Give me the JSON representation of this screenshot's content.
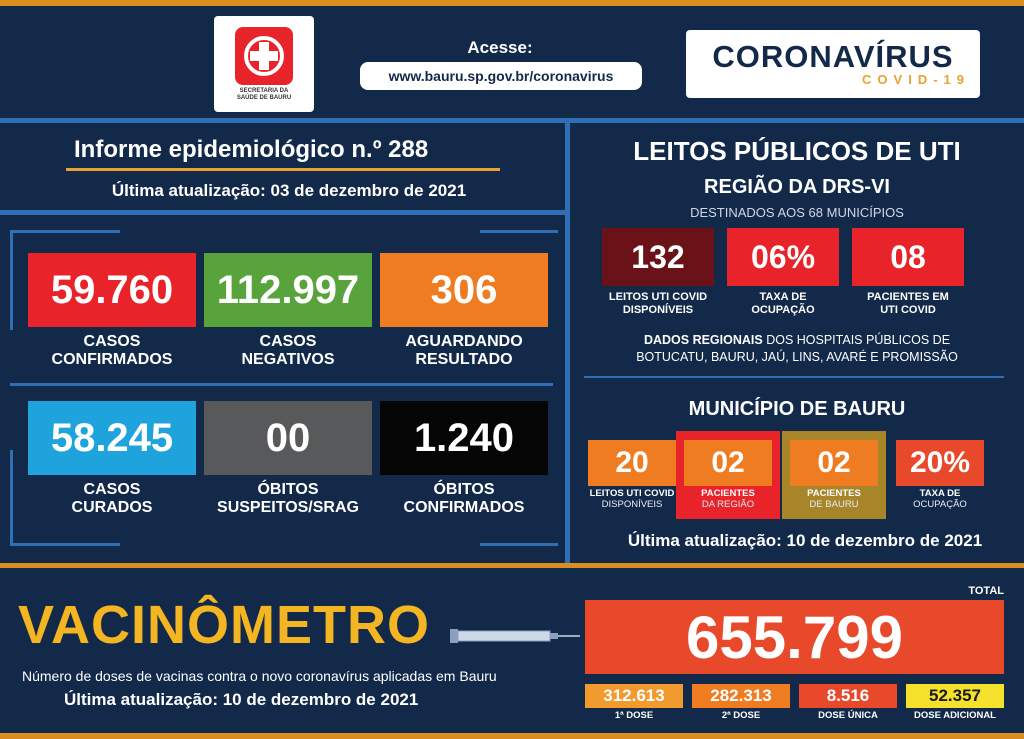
{
  "header": {
    "seal_line1": "SECRETARIA DA",
    "seal_line2": "SAÚDE DE BAURU",
    "access_label": "Acesse:",
    "access_url": "www.bauru.sp.gov.br/coronavirus",
    "brand_title": "CORONAVÍRUS",
    "brand_sub": "COVID-19"
  },
  "informe": {
    "title": "Informe epidemiológico n.º 288",
    "updated": "Última atualização:  03 de dezembro de 2021"
  },
  "stats": [
    {
      "value": "59.760",
      "label1": "CASOS",
      "label2": "CONFIRMADOS",
      "color": "#e8232a"
    },
    {
      "value": "112.997",
      "label1": "CASOS",
      "label2": "NEGATIVOS",
      "color": "#58a33b"
    },
    {
      "value": "306",
      "label1": "AGUARDANDO",
      "label2": "RESULTADO",
      "color": "#f07c22"
    },
    {
      "value": "58.245",
      "label1": "CASOS",
      "label2": "CURADOS",
      "color": "#1ea3dd"
    },
    {
      "value": "00",
      "label1": "ÓBITOS",
      "label2": "SUSPEITOS/SRAG",
      "color": "#58595b"
    },
    {
      "value": "1.240",
      "label1": "ÓBITOS",
      "label2": "CONFIRMADOS",
      "color": "#050505"
    }
  ],
  "uti": {
    "title": "LEITOS PÚBLICOS DE UTI",
    "region": "REGIÃO DA DRS-VI",
    "destined": "DESTINADOS AOS 68 MUNICÍPIOS",
    "regional_boxes": [
      {
        "value": "132",
        "label1": "LEITOS UTI COVID",
        "label2": "DISPONÍVEIS",
        "color": "#6b1218"
      },
      {
        "value": "06%",
        "label1": "TAXA DE",
        "label2": "OCUPAÇÃO",
        "color": "#e8232a"
      },
      {
        "value": "08",
        "label1": "PACIENTES EM",
        "label2": "UTI COVID",
        "color": "#e8232a"
      }
    ],
    "regional_note_bold": "DADOS REGIONAIS",
    "regional_note_rest": " DOS HOSPITAIS PÚBLICOS DE",
    "regional_note_line2": "BOTUCATU, BAURU, JAÚ, LINS, AVARÉ E PROMISSÃO",
    "city_title": "MUNICÍPIO DE BAURU",
    "city_boxes": [
      {
        "value": "20",
        "label1": "LEITOS UTI COVID",
        "label2": "DISPONÍVEIS",
        "color": "#f07c22"
      },
      {
        "value": "02",
        "label1": "PACIENTES",
        "label2": "DA REGIÃO",
        "color": "#f07c22",
        "panel": "#e8232a"
      },
      {
        "value": "02",
        "label1": "PACIENTES",
        "label2": "DE BAURU",
        "color": "#f07c22",
        "panel": "#a9852a"
      },
      {
        "value": "20%",
        "label1": "TAXA DE",
        "label2": "OCUPAÇÃO",
        "color": "#e8492a"
      }
    ],
    "city_updated": "Última atualização:  10 de dezembro de 2021"
  },
  "vacinometro": {
    "title": "VACINÔMETRO",
    "description": "Número de doses de vacinas contra o novo coronavírus aplicadas em Bauru",
    "updated": "Última atualização:  10 de dezembro de 2021",
    "total_label": "TOTAL",
    "total": "655.799",
    "doses": [
      {
        "value": "312.613",
        "label": "1ª DOSE",
        "color": "#f29a2e"
      },
      {
        "value": "282.313",
        "label": "2ª DOSE",
        "color": "#f07c22"
      },
      {
        "value": "8.516",
        "label": "DOSE ÚNICA",
        "color": "#e8492a"
      },
      {
        "value": "52.357",
        "label": "DOSE ADICIONAL",
        "color": "#f3e12c"
      }
    ]
  }
}
